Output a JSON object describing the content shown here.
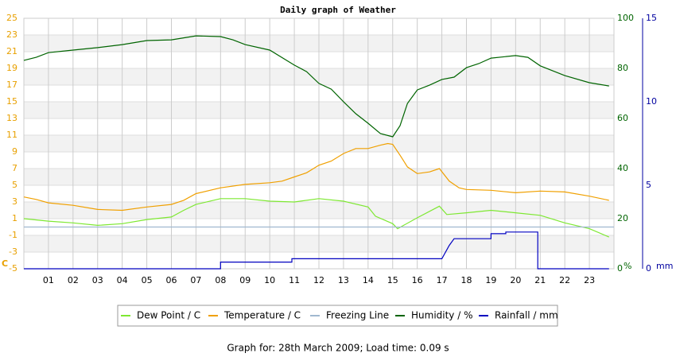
{
  "chart_data": {
    "type": "line",
    "title": "Daily graph of Weather",
    "footer": "Graph for: 28th March 2009; Load time: 0.09 s",
    "y_unit": "C",
    "y2_unit": "%",
    "y3_unit": "mm",
    "xlim": [
      0,
      24
    ],
    "xticks": [
      {
        "value": 1,
        "label": "01"
      },
      {
        "value": 2,
        "label": "02"
      },
      {
        "value": 3,
        "label": "03"
      },
      {
        "value": 4,
        "label": "04"
      },
      {
        "value": 5,
        "label": "05"
      },
      {
        "value": 6,
        "label": "06"
      },
      {
        "value": 7,
        "label": "07"
      },
      {
        "value": 8,
        "label": "08"
      },
      {
        "value": 9,
        "label": "09"
      },
      10,
      11,
      12,
      13,
      14,
      15,
      16,
      17,
      18,
      19,
      20,
      21,
      22,
      23
    ],
    "ylim": [
      -5,
      25
    ],
    "yticks": [
      -5,
      -3,
      -1,
      1,
      3,
      5,
      7,
      9,
      11,
      13,
      15,
      17,
      19,
      21,
      23,
      25
    ],
    "y2lim": [
      0,
      100
    ],
    "y2ticks": [
      0,
      20,
      40,
      60,
      80,
      100
    ],
    "y3lim": [
      0,
      15
    ],
    "y3ticks": [
      0,
      5,
      10,
      15
    ],
    "grid": true,
    "y_color": "#e8a000",
    "y2_color": "#006400",
    "y3_color": "#0000a0",
    "series": [
      {
        "name": "Dew Point / C",
        "color": "#7ee832",
        "axis": "y",
        "x": [
          0,
          1,
          2,
          3,
          4,
          5,
          6,
          6.5,
          7,
          8,
          9,
          10,
          11,
          12,
          13,
          14,
          14.3,
          15,
          15.2,
          16,
          16.9,
          17.2,
          18,
          19,
          20,
          21,
          22,
          23,
          23.8
        ],
        "values": [
          1.0,
          0.7,
          0.5,
          0.2,
          0.4,
          0.9,
          1.2,
          2.0,
          2.7,
          3.4,
          3.4,
          3.1,
          3.0,
          3.4,
          3.1,
          2.4,
          1.3,
          0.4,
          -0.2,
          1.1,
          2.5,
          1.5,
          1.7,
          2.0,
          1.7,
          1.4,
          0.5,
          -0.2,
          -1.2
        ]
      },
      {
        "name": "Temperature / C",
        "color": "#f0a000",
        "axis": "y",
        "x": [
          0,
          0.5,
          1,
          2,
          3,
          4,
          5,
          6,
          6.5,
          7,
          8,
          9,
          10,
          10.5,
          11,
          11.5,
          12,
          12.5,
          13,
          13.5,
          14,
          14.5,
          14.8,
          15,
          15.3,
          15.6,
          16,
          16.5,
          16.9,
          17.3,
          17.7,
          18,
          19,
          20,
          21,
          22,
          23,
          23.8
        ],
        "values": [
          3.6,
          3.3,
          2.9,
          2.6,
          2.1,
          2.0,
          2.4,
          2.7,
          3.2,
          4.0,
          4.7,
          5.1,
          5.3,
          5.5,
          6.0,
          6.5,
          7.4,
          7.9,
          8.8,
          9.4,
          9.4,
          9.8,
          10.0,
          9.9,
          8.6,
          7.2,
          6.4,
          6.6,
          7.0,
          5.5,
          4.7,
          4.5,
          4.4,
          4.1,
          4.3,
          4.2,
          3.7,
          3.2
        ]
      },
      {
        "name": "Freezing Line",
        "color": "#a0b8d0",
        "axis": "y",
        "x": [
          0,
          24
        ],
        "values": [
          0,
          0
        ]
      },
      {
        "name": "Humidity / %",
        "color": "#006400",
        "axis": "y2",
        "x": [
          0,
          0.5,
          1,
          2,
          3,
          4,
          5,
          6,
          7,
          8,
          8.5,
          9,
          10,
          11,
          11.5,
          12,
          12.5,
          13,
          13.5,
          14,
          14.5,
          15,
          15.3,
          15.6,
          16,
          16.5,
          17,
          17.5,
          18,
          18.5,
          19,
          20,
          20.5,
          21,
          22,
          23,
          23.8
        ],
        "values": [
          83.2,
          84.4,
          86.3,
          87.3,
          88.3,
          89.5,
          91.1,
          91.4,
          93.0,
          92.7,
          91.4,
          89.5,
          87.3,
          81.3,
          78.7,
          74.0,
          71.7,
          66.7,
          61.9,
          58.1,
          54.0,
          52.7,
          57.1,
          66.0,
          71.4,
          73.3,
          75.6,
          76.5,
          80.3,
          81.9,
          84.1,
          85.1,
          84.4,
          81.0,
          77.1,
          74.3,
          73.0
        ]
      },
      {
        "name": "Rainfall / mm",
        "color": "#0000c0",
        "axis": "y3",
        "x": [
          0,
          8,
          8,
          10.9,
          10.9,
          17,
          17.3,
          17.5,
          19,
          19,
          19.6,
          19.6,
          20.9,
          20.9,
          23.8
        ],
        "values": [
          0,
          0,
          0.4,
          0.4,
          0.6,
          0.6,
          1.4,
          1.8,
          1.8,
          2.1,
          2.1,
          2.2,
          2.2,
          0,
          0
        ]
      }
    ]
  }
}
